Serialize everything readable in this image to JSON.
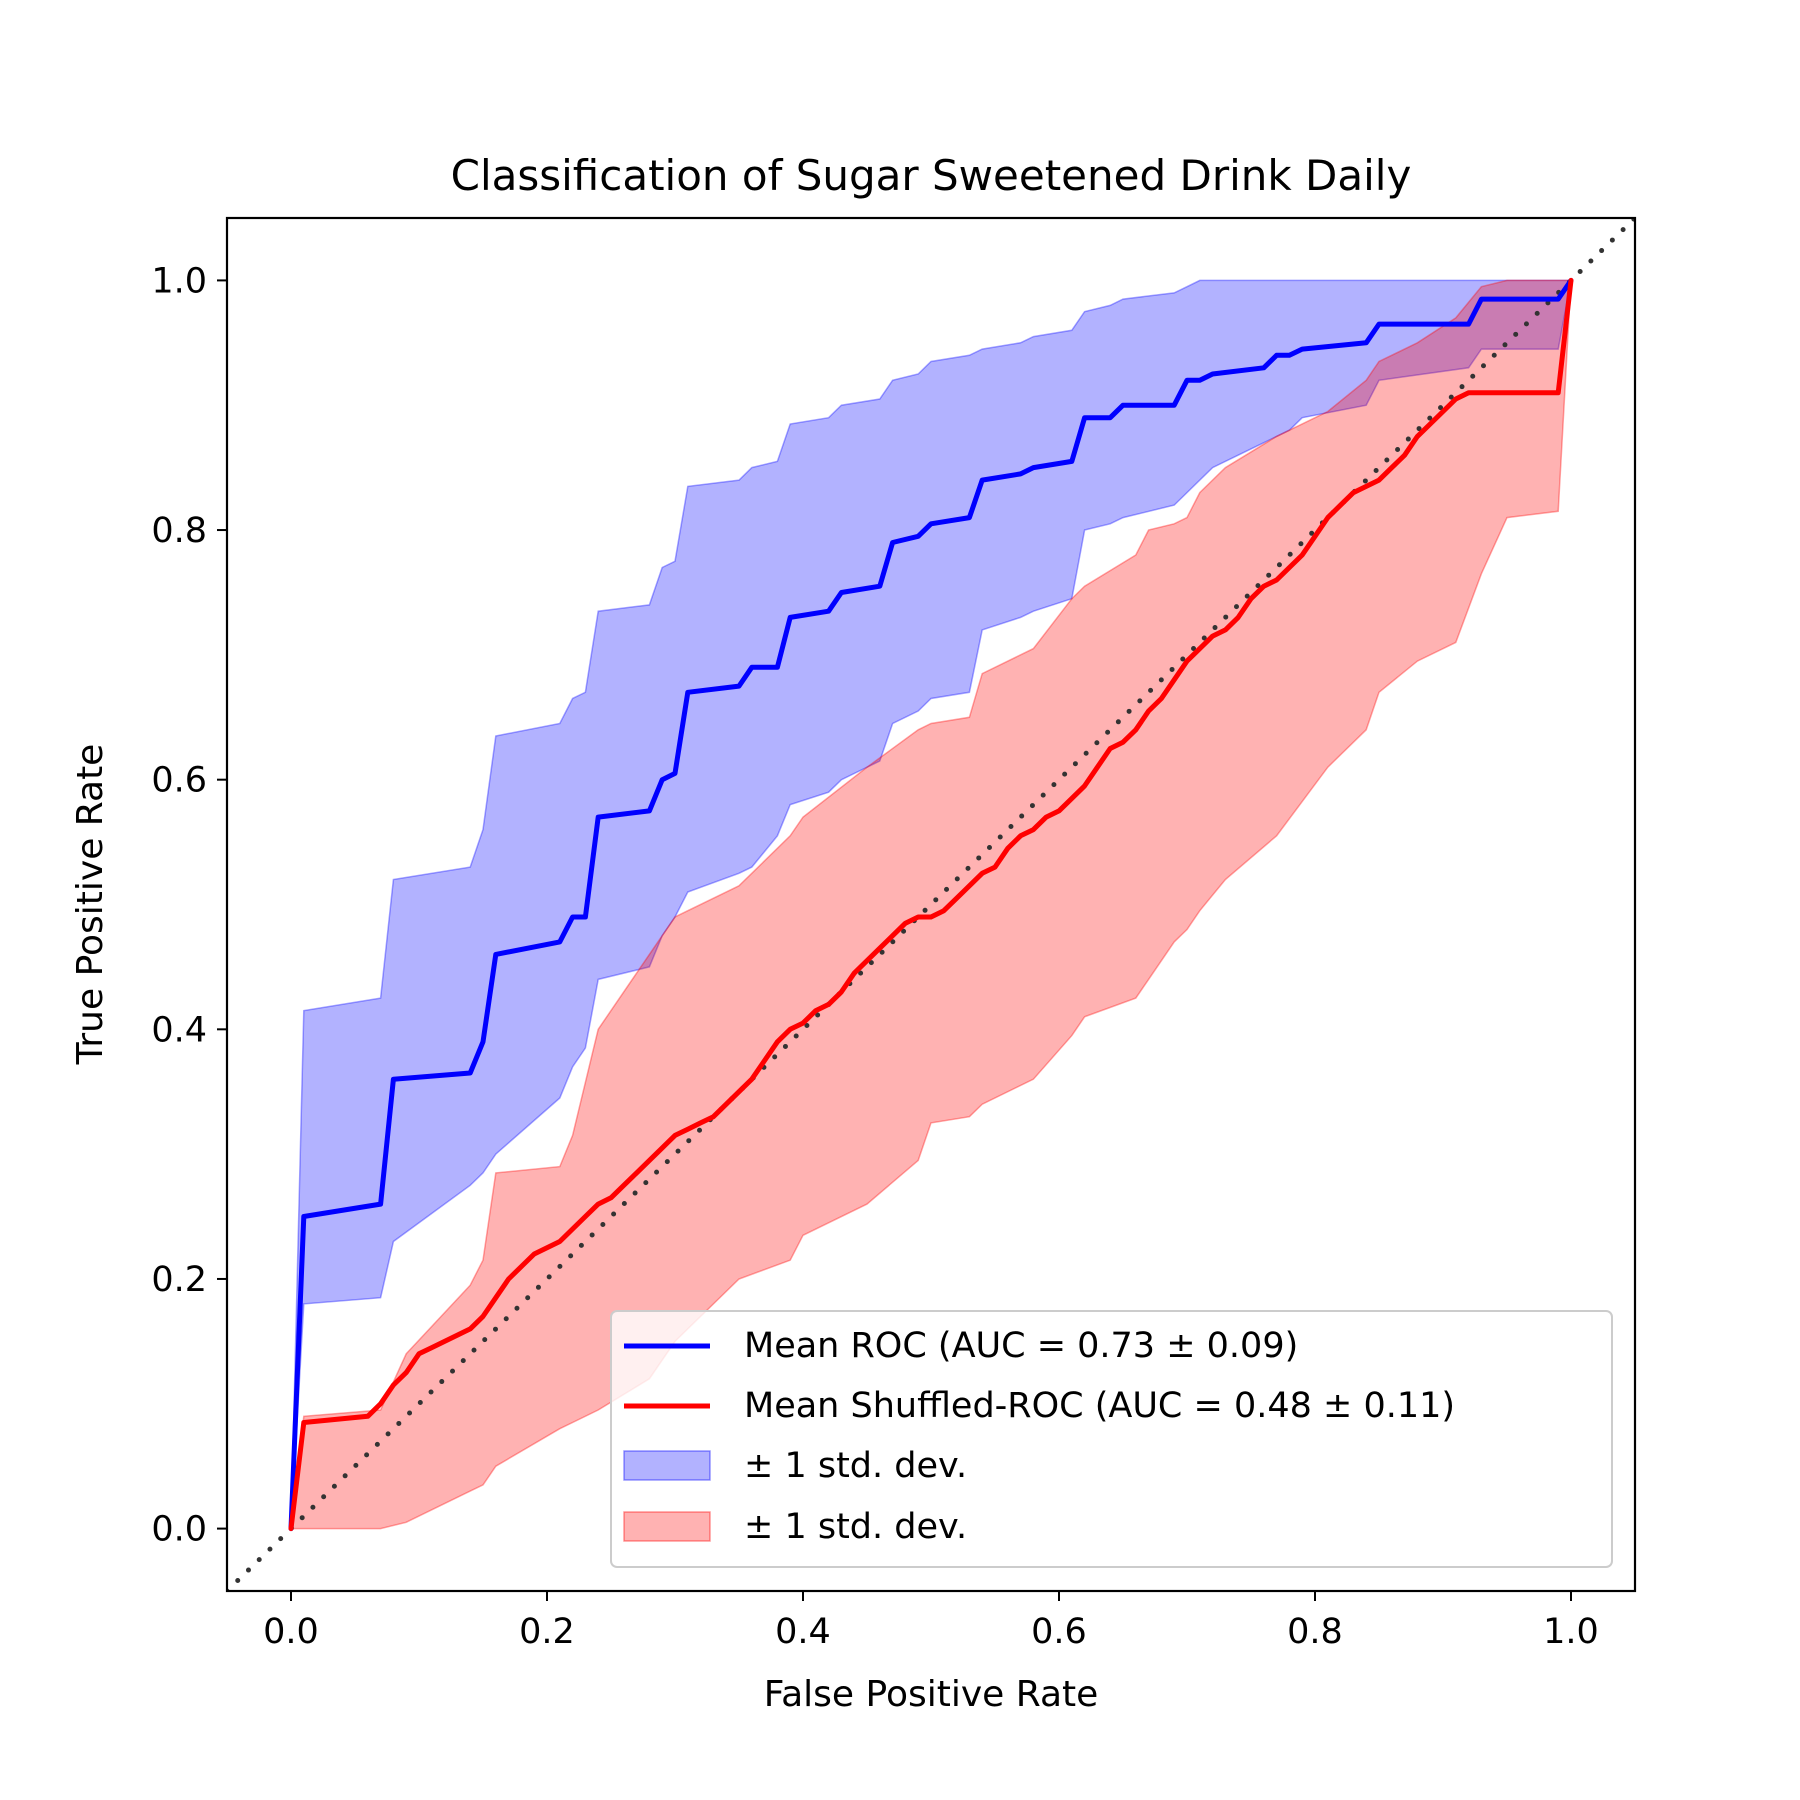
{
  "chart_data": {
    "type": "line",
    "title": "Classification of Sugar Sweetened Drink Daily",
    "xlabel": "False Positive Rate",
    "ylabel": "True Positive Rate",
    "xlim": [
      -0.05,
      1.05
    ],
    "ylim": [
      -0.05,
      1.05
    ],
    "xticks": [
      "0.0",
      "0.2",
      "0.4",
      "0.6",
      "0.8",
      "1.0"
    ],
    "yticks": [
      "0.0",
      "0.2",
      "0.4",
      "0.6",
      "0.8",
      "1.0"
    ],
    "grid": false,
    "legend_position": "lower-right",
    "legend": [
      "Mean ROC (AUC = 0.73 ± 0.09)",
      "Mean Shuffled-ROC (AUC = 0.48 ± 0.11)",
      "± 1 std. dev.",
      "± 1 std. dev."
    ],
    "diagonal": {
      "x": [
        -0.05,
        1.05
      ],
      "y": [
        -0.05,
        1.05
      ],
      "style": "dotted",
      "color": "#333333"
    },
    "series": [
      {
        "name": "Mean ROC (AUC = 0.73 ± 0.09)",
        "color": "#0000ff",
        "x": [
          0.0,
          0.01,
          0.07,
          0.08,
          0.14,
          0.15,
          0.16,
          0.21,
          0.22,
          0.23,
          0.24,
          0.28,
          0.29,
          0.3,
          0.31,
          0.35,
          0.36,
          0.38,
          0.39,
          0.42,
          0.43,
          0.46,
          0.47,
          0.49,
          0.5,
          0.53,
          0.54,
          0.57,
          0.58,
          0.61,
          0.62,
          0.64,
          0.65,
          0.69,
          0.7,
          0.71,
          0.72,
          0.76,
          0.77,
          0.78,
          0.79,
          0.84,
          0.85,
          0.92,
          0.93,
          0.99,
          1.0
        ],
        "y": [
          0.0,
          0.25,
          0.26,
          0.36,
          0.365,
          0.39,
          0.46,
          0.47,
          0.49,
          0.49,
          0.57,
          0.575,
          0.6,
          0.605,
          0.67,
          0.675,
          0.69,
          0.69,
          0.73,
          0.735,
          0.75,
          0.755,
          0.79,
          0.795,
          0.805,
          0.81,
          0.84,
          0.845,
          0.85,
          0.855,
          0.89,
          0.89,
          0.9,
          0.9,
          0.92,
          0.92,
          0.925,
          0.93,
          0.94,
          0.94,
          0.945,
          0.95,
          0.965,
          0.965,
          0.985,
          0.985,
          1.0
        ]
      },
      {
        "name": "Mean Shuffled-ROC (AUC = 0.48 ± 0.11)",
        "color": "#ff0000",
        "x": [
          0.0,
          0.01,
          0.06,
          0.07,
          0.08,
          0.09,
          0.1,
          0.11,
          0.12,
          0.13,
          0.14,
          0.15,
          0.16,
          0.17,
          0.18,
          0.19,
          0.2,
          0.21,
          0.22,
          0.23,
          0.24,
          0.25,
          0.26,
          0.27,
          0.28,
          0.29,
          0.3,
          0.31,
          0.32,
          0.33,
          0.34,
          0.35,
          0.36,
          0.37,
          0.38,
          0.39,
          0.4,
          0.41,
          0.42,
          0.43,
          0.44,
          0.45,
          0.46,
          0.47,
          0.48,
          0.49,
          0.5,
          0.51,
          0.52,
          0.53,
          0.54,
          0.55,
          0.56,
          0.57,
          0.58,
          0.59,
          0.6,
          0.61,
          0.62,
          0.63,
          0.64,
          0.65,
          0.66,
          0.67,
          0.68,
          0.69,
          0.7,
          0.71,
          0.72,
          0.73,
          0.74,
          0.75,
          0.76,
          0.77,
          0.78,
          0.79,
          0.8,
          0.81,
          0.82,
          0.83,
          0.84,
          0.85,
          0.86,
          0.87,
          0.88,
          0.89,
          0.9,
          0.91,
          0.92,
          0.93,
          0.94,
          0.95,
          0.96,
          0.97,
          0.98,
          0.99,
          1.0
        ],
        "y": [
          0.0,
          0.085,
          0.09,
          0.1,
          0.115,
          0.125,
          0.14,
          0.145,
          0.15,
          0.155,
          0.16,
          0.17,
          0.185,
          0.2,
          0.21,
          0.22,
          0.225,
          0.23,
          0.24,
          0.25,
          0.26,
          0.265,
          0.275,
          0.285,
          0.295,
          0.305,
          0.315,
          0.32,
          0.325,
          0.33,
          0.34,
          0.35,
          0.36,
          0.375,
          0.39,
          0.4,
          0.405,
          0.415,
          0.42,
          0.43,
          0.445,
          0.455,
          0.465,
          0.475,
          0.485,
          0.49,
          0.49,
          0.495,
          0.505,
          0.515,
          0.525,
          0.53,
          0.545,
          0.555,
          0.56,
          0.57,
          0.575,
          0.585,
          0.595,
          0.61,
          0.625,
          0.63,
          0.64,
          0.655,
          0.665,
          0.68,
          0.695,
          0.705,
          0.715,
          0.72,
          0.73,
          0.745,
          0.755,
          0.76,
          0.77,
          0.78,
          0.795,
          0.81,
          0.82,
          0.83,
          0.835,
          0.84,
          0.85,
          0.86,
          0.875,
          0.885,
          0.895,
          0.905,
          0.91,
          0.91,
          0.91,
          0.91,
          0.91,
          0.91,
          0.91,
          0.91,
          1.0
        ]
      }
    ],
    "bands": [
      {
        "name": "± 1 std. dev.",
        "color": "#0000ff",
        "opacity": 0.3,
        "x": [
          0.0,
          0.01,
          0.07,
          0.08,
          0.14,
          0.15,
          0.16,
          0.21,
          0.22,
          0.23,
          0.24,
          0.28,
          0.29,
          0.3,
          0.31,
          0.35,
          0.36,
          0.38,
          0.39,
          0.42,
          0.43,
          0.46,
          0.47,
          0.49,
          0.5,
          0.53,
          0.54,
          0.57,
          0.58,
          0.61,
          0.62,
          0.64,
          0.65,
          0.69,
          0.7,
          0.71,
          0.72,
          0.76,
          0.77,
          0.78,
          0.79,
          0.84,
          0.85,
          0.92,
          0.93,
          0.99,
          1.0
        ],
        "upper": [
          0.0,
          0.415,
          0.425,
          0.52,
          0.53,
          0.56,
          0.635,
          0.645,
          0.665,
          0.67,
          0.735,
          0.74,
          0.77,
          0.775,
          0.835,
          0.84,
          0.85,
          0.855,
          0.885,
          0.89,
          0.9,
          0.905,
          0.92,
          0.925,
          0.935,
          0.94,
          0.945,
          0.95,
          0.955,
          0.96,
          0.975,
          0.98,
          0.985,
          0.99,
          0.995,
          1.0,
          1.0,
          1.0,
          1.0,
          1.0,
          1.0,
          1.0,
          1.0,
          1.0,
          1.0,
          1.0,
          1.0
        ],
        "lower": [
          0.0,
          0.18,
          0.185,
          0.23,
          0.275,
          0.285,
          0.3,
          0.345,
          0.37,
          0.385,
          0.44,
          0.45,
          0.475,
          0.49,
          0.51,
          0.525,
          0.53,
          0.555,
          0.58,
          0.59,
          0.6,
          0.615,
          0.645,
          0.655,
          0.665,
          0.67,
          0.72,
          0.73,
          0.735,
          0.745,
          0.8,
          0.805,
          0.81,
          0.82,
          0.83,
          0.84,
          0.85,
          0.87,
          0.875,
          0.88,
          0.89,
          0.9,
          0.92,
          0.93,
          0.945,
          0.945,
          1.0
        ]
      },
      {
        "name": "± 1 std. dev.",
        "color": "#ff0000",
        "opacity": 0.3,
        "x": [
          0.0,
          0.01,
          0.07,
          0.09,
          0.14,
          0.15,
          0.16,
          0.21,
          0.22,
          0.24,
          0.28,
          0.3,
          0.31,
          0.35,
          0.39,
          0.4,
          0.45,
          0.49,
          0.5,
          0.53,
          0.54,
          0.58,
          0.61,
          0.62,
          0.66,
          0.67,
          0.69,
          0.7,
          0.71,
          0.73,
          0.77,
          0.81,
          0.84,
          0.85,
          0.88,
          0.91,
          0.93,
          0.95,
          0.99,
          1.0
        ],
        "upper": [
          0.0,
          0.09,
          0.095,
          0.14,
          0.195,
          0.215,
          0.285,
          0.29,
          0.315,
          0.4,
          0.46,
          0.49,
          0.495,
          0.515,
          0.555,
          0.57,
          0.61,
          0.64,
          0.645,
          0.65,
          0.685,
          0.705,
          0.745,
          0.755,
          0.78,
          0.8,
          0.805,
          0.81,
          0.83,
          0.85,
          0.875,
          0.895,
          0.92,
          0.935,
          0.95,
          0.97,
          0.995,
          1.0,
          1.0,
          1.0
        ],
        "lower": [
          0.0,
          0.0,
          0.0,
          0.005,
          0.03,
          0.035,
          0.05,
          0.08,
          0.085,
          0.095,
          0.12,
          0.15,
          0.16,
          0.2,
          0.215,
          0.235,
          0.26,
          0.295,
          0.325,
          0.33,
          0.34,
          0.36,
          0.395,
          0.41,
          0.425,
          0.44,
          0.47,
          0.48,
          0.495,
          0.52,
          0.555,
          0.61,
          0.64,
          0.67,
          0.695,
          0.71,
          0.765,
          0.81,
          0.815,
          1.0
        ]
      }
    ]
  }
}
